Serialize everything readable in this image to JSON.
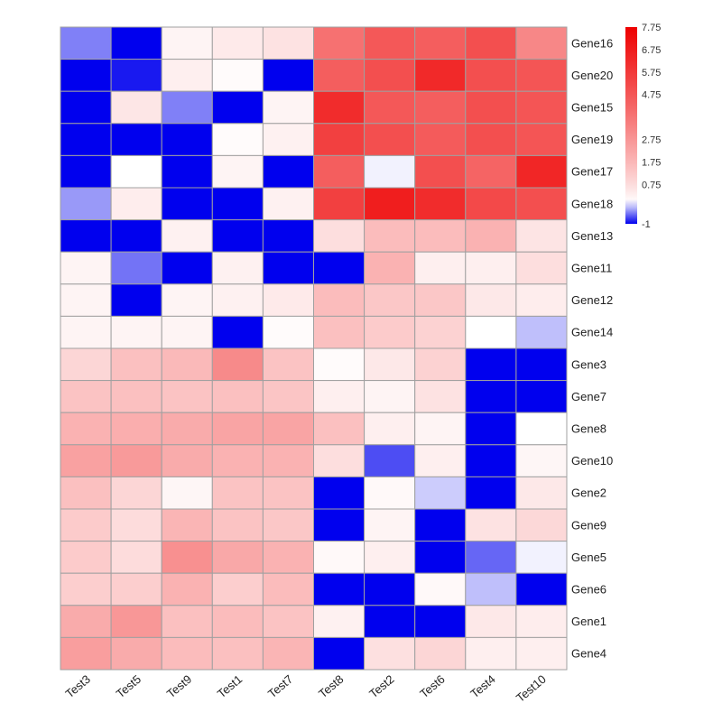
{
  "chart_data": {
    "type": "heatmap",
    "columns": [
      "Test3",
      "Test5",
      "Test9",
      "Test1",
      "Test7",
      "Test8",
      "Test2",
      "Test6",
      "Test4",
      "Test10"
    ],
    "rows": [
      "Gene16",
      "Gene20",
      "Gene15",
      "Gene19",
      "Gene17",
      "Gene18",
      "Gene13",
      "Gene11",
      "Gene12",
      "Gene14",
      "Gene3",
      "Gene7",
      "Gene8",
      "Gene10",
      "Gene2",
      "Gene9",
      "Gene5",
      "Gene6",
      "Gene1",
      "Gene4"
    ],
    "values": [
      [
        -0.5,
        -1.0,
        0.2,
        0.4,
        0.6,
        3.9,
        4.7,
        4.5,
        5.0,
        3.2
      ],
      [
        -1.0,
        -0.9,
        0.3,
        0.05,
        -1.0,
        4.5,
        5.0,
        6.3,
        5.0,
        4.8
      ],
      [
        -1.0,
        0.5,
        -0.5,
        -1.0,
        0.2,
        6.2,
        4.7,
        4.5,
        5.0,
        4.8
      ],
      [
        -1.0,
        -1.0,
        -1.0,
        0.05,
        0.25,
        5.5,
        5.0,
        4.6,
        5.0,
        4.8
      ],
      [
        -1.0,
        0.0,
        -1.0,
        0.2,
        -1.0,
        4.5,
        -0.05,
        5.0,
        4.3,
        6.4
      ],
      [
        -0.4,
        0.35,
        -1.0,
        -1.0,
        0.25,
        5.5,
        6.7,
        6.2,
        5.2,
        5.0
      ],
      [
        -1.0,
        -1.0,
        0.25,
        -1.0,
        -1.0,
        0.7,
        1.6,
        1.6,
        1.9,
        0.55
      ],
      [
        0.2,
        -0.55,
        -1.0,
        0.25,
        -1.0,
        -1.0,
        1.9,
        0.3,
        0.3,
        0.7
      ],
      [
        0.2,
        -1.0,
        0.2,
        0.25,
        0.4,
        1.6,
        1.3,
        1.3,
        0.45,
        0.35
      ],
      [
        0.2,
        0.2,
        0.2,
        -1.0,
        0.05,
        1.5,
        1.2,
        1.0,
        0.0,
        -0.25
      ],
      [
        0.9,
        1.5,
        1.7,
        3.1,
        1.4,
        0.05,
        0.45,
        1.0,
        -1.0,
        -1.0
      ],
      [
        1.4,
        1.5,
        1.4,
        1.5,
        1.35,
        0.3,
        0.2,
        0.6,
        -1.0,
        -1.0
      ],
      [
        1.9,
        2.0,
        2.1,
        2.3,
        2.3,
        1.5,
        0.3,
        0.2,
        -1.0,
        0.0
      ],
      [
        2.4,
        2.6,
        2.1,
        1.9,
        1.9,
        0.7,
        -0.7,
        0.3,
        -1.0,
        0.15
      ],
      [
        1.5,
        0.9,
        0.15,
        1.4,
        1.4,
        -1.0,
        0.1,
        -0.2,
        -1.0,
        0.45
      ],
      [
        1.2,
        0.75,
        1.8,
        1.4,
        1.3,
        -1.0,
        0.2,
        -1.0,
        0.6,
        0.85
      ],
      [
        1.2,
        0.75,
        2.9,
        2.2,
        1.9,
        0.1,
        0.3,
        -1.0,
        -0.6,
        -0.05
      ],
      [
        1.1,
        1.1,
        1.9,
        1.1,
        1.6,
        -1.0,
        -1.0,
        0.1,
        -0.25,
        -1.0
      ],
      [
        2.1,
        2.7,
        1.5,
        1.6,
        1.4,
        0.25,
        -1.0,
        -1.0,
        0.45,
        0.35
      ],
      [
        2.5,
        2.1,
        1.6,
        1.5,
        1.8,
        -1.0,
        0.65,
        0.9,
        0.3,
        0.3
      ]
    ],
    "colorbar": {
      "min": -1,
      "max": 7.75,
      "ticks": [
        {
          "value": 7.75,
          "label": "7.75"
        },
        {
          "value": 6.75,
          "label": "6.75"
        },
        {
          "value": 5.75,
          "label": "5.75"
        },
        {
          "value": 4.75,
          "label": "4.75"
        },
        {
          "value": 2.75,
          "label": "2.75"
        },
        {
          "value": 1.75,
          "label": "1.75"
        },
        {
          "value": 0.75,
          "label": "0.75"
        },
        {
          "value": -1,
          "label": "-1"
        }
      ],
      "colors": {
        "low": "#0000ee",
        "mid": "#ffffff",
        "high": "#ee0000"
      },
      "mid_value": 0
    },
    "grid": true,
    "legend_position": "right"
  }
}
